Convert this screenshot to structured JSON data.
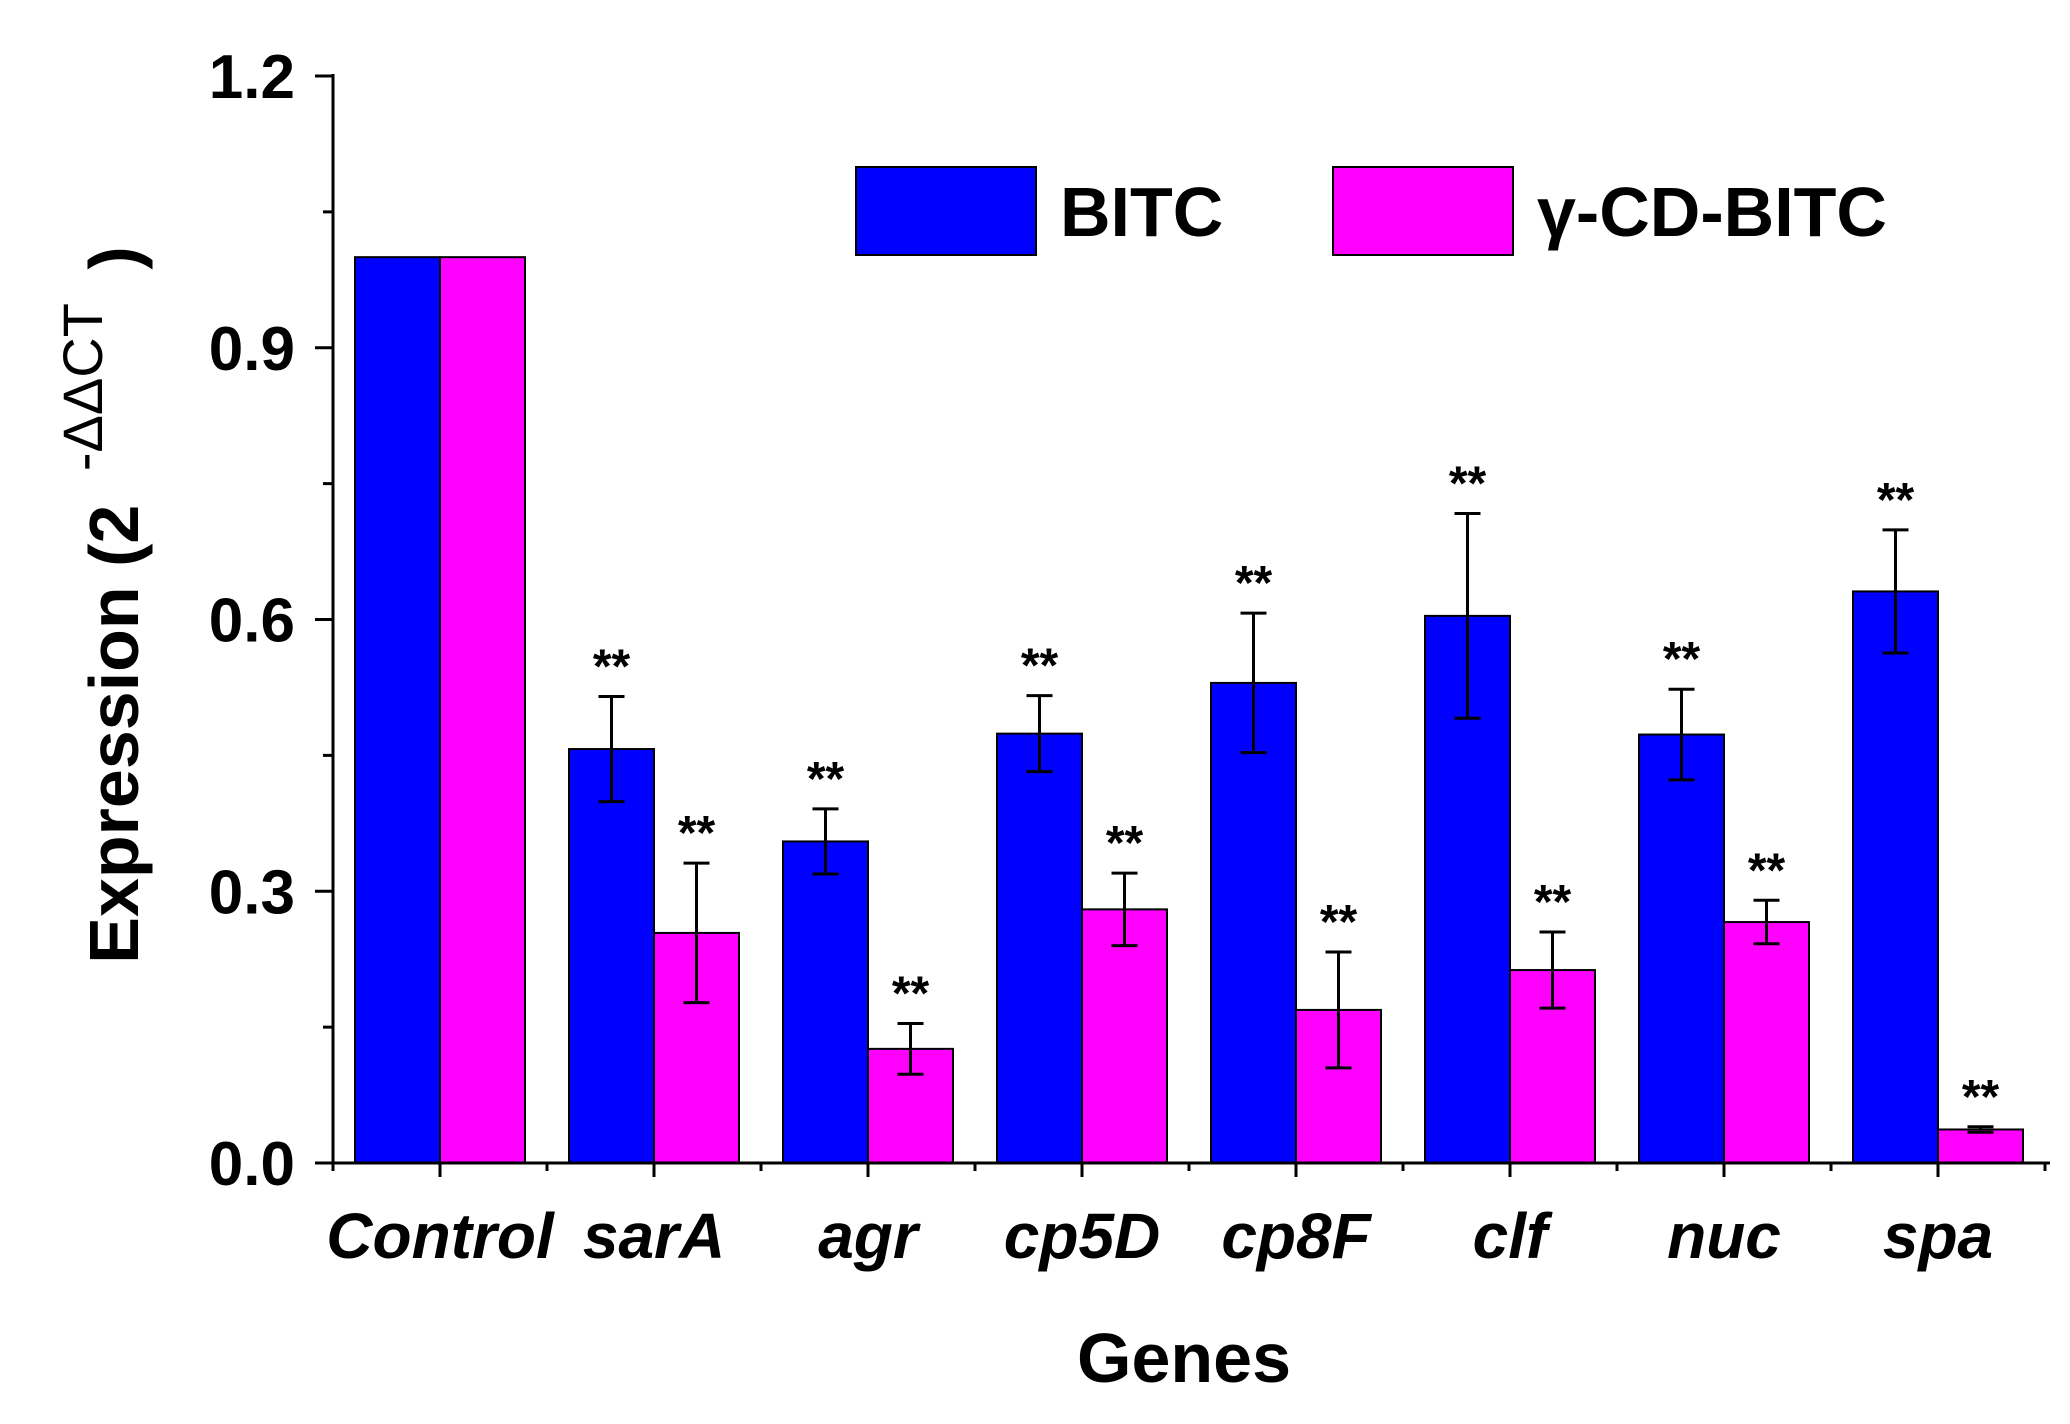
{
  "chart_data": {
    "type": "bar",
    "title": "",
    "xlabel": "Genes",
    "ylabel": "Expression (2",
    "ylabel_superscript": "-ΔΔCT",
    "ylabel_close": ")",
    "ylim": [
      0,
      1.2
    ],
    "yticks": [
      "0.0",
      "0.3",
      "0.6",
      "0.9",
      "1.2"
    ],
    "ytick_values": [
      0,
      0.3,
      0.6,
      0.9,
      1.2
    ],
    "categories": [
      "Control",
      "sarA",
      "agr",
      "cp5D",
      "cp8F",
      "clf",
      "nuc",
      "spa"
    ],
    "legend_position": "top-right",
    "series": [
      {
        "name": "BITC",
        "color": "#0000FF",
        "values": [
          1.0,
          0.457,
          0.355,
          0.474,
          0.53,
          0.604,
          0.473,
          0.631
        ],
        "errors": [
          0,
          0.058,
          0.036,
          0.042,
          0.077,
          0.113,
          0.05,
          0.068
        ],
        "significance": [
          "",
          "**",
          "**",
          "**",
          "**",
          "**",
          "**",
          "**"
        ]
      },
      {
        "name": "γ-CD-BITC",
        "color": "#FF00FF",
        "values": [
          1.0,
          0.254,
          0.126,
          0.28,
          0.169,
          0.213,
          0.266,
          0.037
        ],
        "errors": [
          0,
          0.077,
          0.028,
          0.04,
          0.064,
          0.042,
          0.024,
          0.003
        ],
        "significance": [
          "",
          "**",
          "**",
          "**",
          "**",
          "**",
          "**",
          "**"
        ]
      }
    ]
  }
}
